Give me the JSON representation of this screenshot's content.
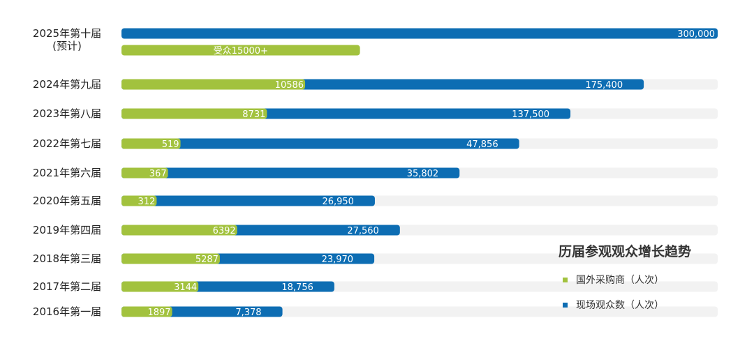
{
  "chart_data": {
    "type": "bar",
    "orientation": "horizontal",
    "title": "历届参观观众增长趋势",
    "grid": false,
    "legend_position": "bottom-right",
    "xlim": [
      0,
      300000
    ],
    "categories": [
      "2025年第十届\n(预计)",
      "2024年第九届",
      "2023年第八届",
      "2022年第七届",
      "2021年第六届",
      "2020年第五届",
      "2019年第四届",
      "2018年第三届",
      "2017年第二届",
      "2016年第一届"
    ],
    "series": [
      {
        "name": "国外采购商（人次）",
        "color": "#a2c23e",
        "values": [
          null,
          10586,
          8731,
          519,
          367,
          312,
          6392,
          5287,
          3144,
          1897
        ],
        "labels": [
          "受众15000+",
          "10586",
          "8731",
          "519",
          "367",
          "312",
          "6392",
          "5287",
          "3144",
          "1897"
        ],
        "displayed_fraction": [
          0.4,
          0.308,
          0.244,
          0.099,
          0.078,
          0.059,
          0.194,
          0.165,
          0.129,
          0.085
        ]
      },
      {
        "name": "现场观众数（人次）",
        "color": "#0d6db3",
        "values": [
          300000,
          175400,
          137500,
          47856,
          35802,
          26950,
          27560,
          23970,
          18756,
          7378
        ],
        "labels": [
          "300,000",
          "175,400",
          "137,500",
          "47,856",
          "35,802",
          "26,950",
          "27,560",
          "23,970",
          "18,756",
          "7,378"
        ],
        "displayed_fraction": [
          1.0,
          0.876,
          0.753,
          0.667,
          0.567,
          0.425,
          0.467,
          0.424,
          0.357,
          0.27
        ]
      }
    ],
    "track_color": "#f2f2f2"
  }
}
